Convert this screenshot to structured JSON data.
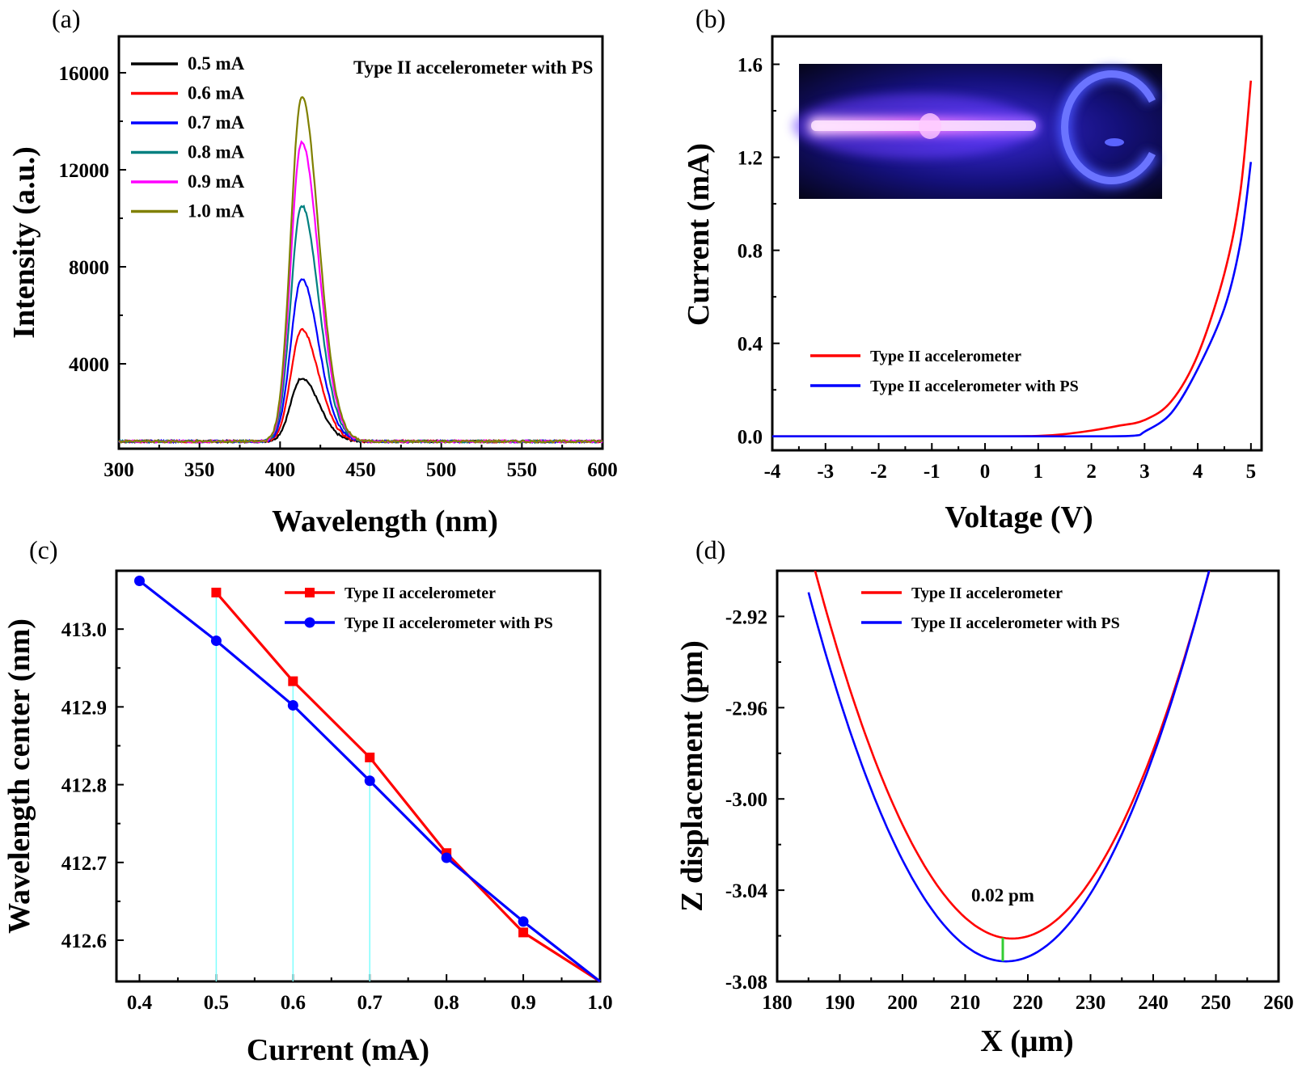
{
  "chart_data": [
    {
      "id": "a",
      "panel_label": "(a)",
      "type": "line",
      "title": "Type II  accelerometer with PS",
      "xlabel": "Wavelength (nm)",
      "ylabel": "Intensity (a.u.)",
      "xlim": [
        300,
        600
      ],
      "ylim": [
        500,
        17500
      ],
      "xticks": [
        300,
        350,
        400,
        450,
        500,
        550,
        600
      ],
      "yticks": [
        4000,
        8000,
        12000,
        16000
      ],
      "peak_center": 413,
      "baseline": 800,
      "series": [
        {
          "name": "0.5 mA",
          "color": "#000000",
          "peak": 3300
        },
        {
          "name": "0.6 mA",
          "color": "#ff0000",
          "peak": 5200
        },
        {
          "name": "0.7 mA",
          "color": "#0000ff",
          "peak": 7200
        },
        {
          "name": "0.8 mA",
          "color": "#008080",
          "peak": 10100
        },
        {
          "name": "0.9 mA",
          "color": "#ff00ff",
          "peak": 12600
        },
        {
          "name": "1.0 mA",
          "color": "#808000",
          "peak": 14400
        }
      ]
    },
    {
      "id": "b",
      "panel_label": "(b)",
      "type": "line",
      "xlabel": "Voltage (V)",
      "ylabel": "Current (mA)",
      "xlim": [
        -4,
        5.2
      ],
      "ylim": [
        -0.06,
        1.72
      ],
      "xticks": [
        -4,
        -3,
        -2,
        -1,
        0,
        1,
        2,
        3,
        4,
        5
      ],
      "yticks": [
        0.0,
        0.4,
        0.8,
        1.2,
        1.6
      ],
      "inset": "glow discharge photograph",
      "series": [
        {
          "name": "Type II accelerometer",
          "color": "#ff0000",
          "x": [
            -4,
            0,
            1,
            1.5,
            2,
            2.5,
            3,
            3.5,
            4,
            4.5,
            4.8,
            5.0
          ],
          "y": [
            0,
            0,
            0.002,
            0.01,
            0.025,
            0.045,
            0.07,
            0.15,
            0.35,
            0.7,
            1.05,
            1.53
          ]
        },
        {
          "name": "Type II accelerometer with PS",
          "color": "#0000ff",
          "x": [
            -4,
            0,
            1,
            2,
            2.8,
            3,
            3.5,
            4,
            4.5,
            4.8,
            5.0
          ],
          "y": [
            0,
            0,
            0,
            0,
            0.003,
            0.02,
            0.1,
            0.29,
            0.55,
            0.83,
            1.18
          ]
        }
      ]
    },
    {
      "id": "c",
      "panel_label": "(c)",
      "type": "line",
      "xlabel": "Current (mA)",
      "ylabel": "Wavelength center (nm)",
      "xlim": [
        0.37,
        1.0
      ],
      "ylim": [
        412.547,
        413.075
      ],
      "xticks": [
        0.4,
        0.5,
        0.6,
        0.7,
        0.8,
        0.9,
        1.0
      ],
      "yticks": [
        412.6,
        412.7,
        412.8,
        412.9,
        413.0
      ],
      "guides_x": [
        0.5,
        0.6,
        0.7
      ],
      "series": [
        {
          "name": "Type II accelerometer",
          "color": "#ff0000",
          "marker": "square",
          "x": [
            0.5,
            0.6,
            0.7,
            0.8,
            0.9,
            1.0
          ],
          "y": [
            413.047,
            412.933,
            412.835,
            412.712,
            412.61,
            412.547
          ]
        },
        {
          "name": "Type II accelerometer with PS",
          "color": "#0000ff",
          "marker": "circle",
          "x": [
            0.4,
            0.5,
            0.6,
            0.7,
            0.8,
            0.9,
            1.0
          ],
          "y": [
            413.062,
            412.985,
            412.902,
            412.805,
            412.706,
            412.624,
            412.547
          ]
        }
      ]
    },
    {
      "id": "d",
      "panel_label": "(d)",
      "type": "line",
      "xlabel": "X (μm)",
      "ylabel": "Z displacement (pm)",
      "xlim": [
        180,
        260
      ],
      "ylim": [
        -3.08,
        -2.9
      ],
      "xticks": [
        180,
        190,
        200,
        210,
        220,
        230,
        240,
        250,
        260
      ],
      "yticks": [
        -3.08,
        -3.04,
        -3.0,
        -2.96,
        -2.92
      ],
      "annotation": "0.02 pm",
      "annotation_x": 216,
      "series": [
        {
          "name": "Type II accelerometer",
          "color": "#ff0000",
          "vertex_x": 217.5,
          "vertex_y": -3.0612,
          "curvature": 0.000163
        },
        {
          "name": "Type II accelerometer with PS",
          "color": "#0000ff",
          "vertex_x": 216.5,
          "vertex_y": -3.0712,
          "curvature": 0.000163
        }
      ]
    }
  ]
}
